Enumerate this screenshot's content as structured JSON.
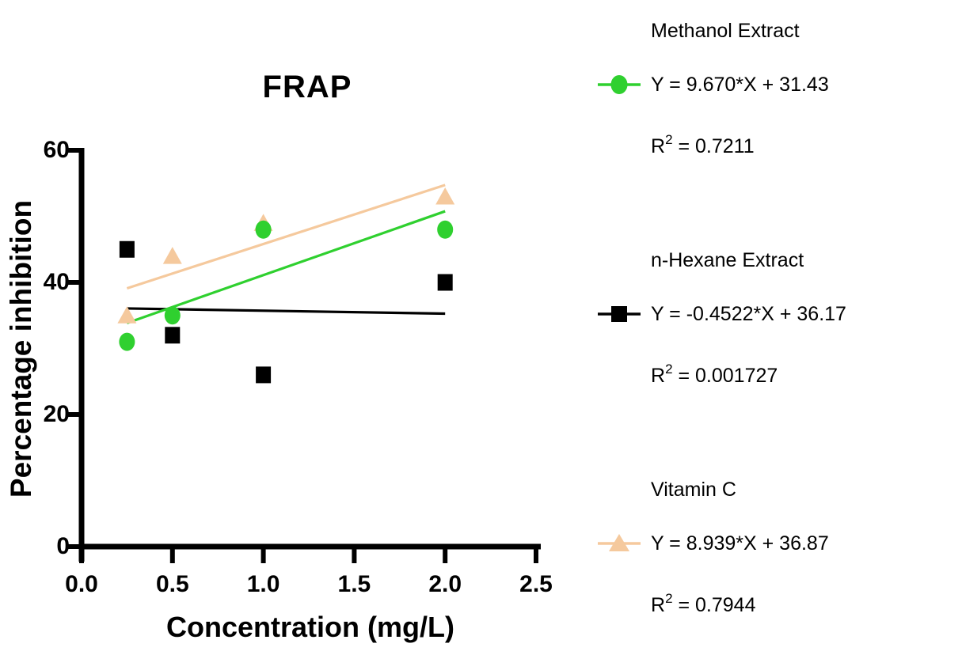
{
  "chart_data": {
    "type": "scatter",
    "title": "FRAP",
    "xlabel": "Concentration (mg/L)",
    "ylabel": "Percentage inhibition",
    "xlim": [
      0,
      2.5
    ],
    "ylim": [
      0,
      60
    ],
    "grid": false,
    "legend_position": "right",
    "xtick_values": [
      0,
      0.5,
      1.0,
      1.5,
      2.0,
      2.5
    ],
    "xtick_labels": [
      "0.0",
      "0.5",
      "1.0",
      "1.5",
      "2.0",
      "2.5"
    ],
    "ytick_values": [
      0,
      20,
      40,
      60
    ],
    "ytick_labels": [
      "0",
      "20",
      "40",
      "60"
    ],
    "fit_line_x_range": [
      0.25,
      2.0
    ],
    "series": [
      {
        "name": "Methanol Extract",
        "marker": "circle",
        "color": "#2fd02f",
        "x": [
          0.25,
          0.5,
          1.0,
          2.0
        ],
        "y": [
          31,
          35,
          48,
          48
        ],
        "fit": {
          "slope": 9.67,
          "intercept": 31.43,
          "r2": 0.7211
        }
      },
      {
        "name": "n-Hexane Extract",
        "marker": "square",
        "color": "#000000",
        "x": [
          0.25,
          0.5,
          1.0,
          2.0
        ],
        "y": [
          45,
          32,
          26,
          40
        ],
        "fit": {
          "slope": -0.4522,
          "intercept": 36.17,
          "r2": 0.001727
        }
      },
      {
        "name": "Vitamin C",
        "marker": "triangle",
        "color": "#f5c99d",
        "x": [
          0.25,
          0.5,
          1.0,
          2.0
        ],
        "y": [
          35,
          44,
          49,
          53
        ],
        "fit": {
          "slope": 8.939,
          "intercept": 36.87,
          "r2": 0.7944
        }
      }
    ]
  },
  "legend": {
    "entries": [
      {
        "name": "Methanol Extract",
        "equation": "Y = 9.670*X + 31.43",
        "r2_base": "R",
        "r2_sup": "2",
        "r2_rest": " = 0.7211"
      },
      {
        "name": "n-Hexane Extract",
        "equation": "Y = -0.4522*X + 36.17",
        "r2_base": "R",
        "r2_sup": "2",
        "r2_rest": " = 0.001727"
      },
      {
        "name": "Vitamin C",
        "equation": "Y = 8.939*X + 36.87",
        "r2_base": "R",
        "r2_sup": "2",
        "r2_rest": " = 0.7944"
      }
    ]
  }
}
